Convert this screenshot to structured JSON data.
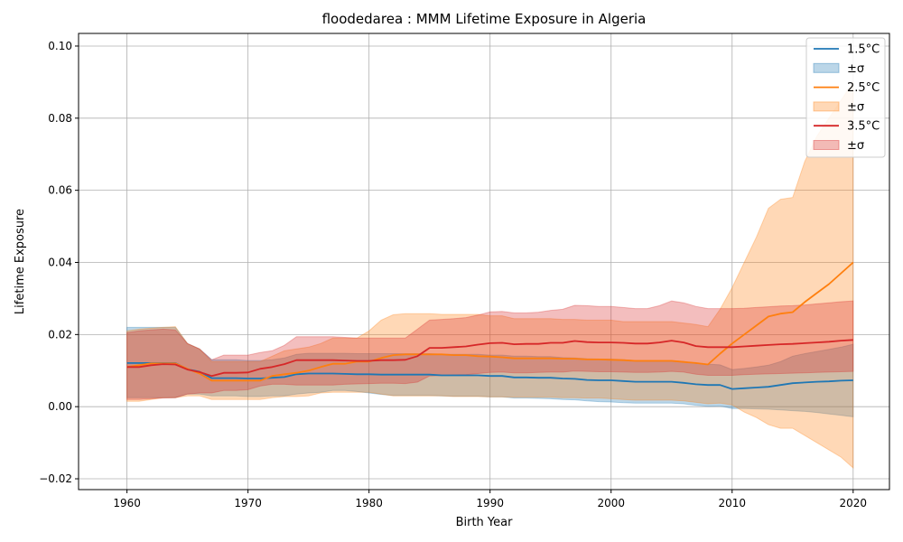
{
  "chart_data": {
    "type": "line",
    "title": "floodedarea : MMM Lifetime Exposure in Algeria",
    "xlabel": "Birth Year",
    "ylabel": "Lifetime Exposure",
    "xlim": [
      1956,
      2023
    ],
    "ylim": [
      -0.023,
      0.1035
    ],
    "xticks": [
      1960,
      1970,
      1980,
      1990,
      2000,
      2010,
      2020
    ],
    "yticks": [
      -0.02,
      0.0,
      0.02,
      0.04,
      0.06,
      0.08,
      0.1
    ],
    "ytick_labels": [
      "−0.02",
      "0.00",
      "0.02",
      "0.04",
      "0.06",
      "0.08",
      "0.10"
    ],
    "grid": true,
    "legend_position": "top-right",
    "legend": [
      "1.5°C",
      "±σ",
      "2.5°C",
      "±σ",
      "3.5°C",
      "±σ"
    ],
    "x": [
      1960,
      1961,
      1962,
      1963,
      1964,
      1965,
      1966,
      1967,
      1968,
      1969,
      1970,
      1971,
      1972,
      1973,
      1974,
      1975,
      1976,
      1977,
      1978,
      1979,
      1980,
      1981,
      1982,
      1983,
      1984,
      1985,
      1986,
      1987,
      1988,
      1989,
      1990,
      1991,
      1992,
      1993,
      1994,
      1995,
      1996,
      1997,
      1998,
      1999,
      2000,
      2001,
      2002,
      2003,
      2004,
      2005,
      2006,
      2007,
      2008,
      2009,
      2010,
      2011,
      2012,
      2013,
      2014,
      2015,
      2016,
      2017,
      2018,
      2019,
      2020
    ],
    "series": [
      {
        "name": "1.5°C",
        "band_name": "±σ",
        "color": "#1f77b4",
        "mean": [
          0.0121,
          0.0121,
          0.0121,
          0.0121,
          0.0121,
          0.0104,
          0.0097,
          0.0079,
          0.0079,
          0.0079,
          0.0078,
          0.0078,
          0.008,
          0.0082,
          0.009,
          0.0092,
          0.0092,
          0.0092,
          0.0091,
          0.009,
          0.009,
          0.0089,
          0.0089,
          0.0089,
          0.0089,
          0.0089,
          0.0087,
          0.0087,
          0.0087,
          0.0087,
          0.0085,
          0.0085,
          0.0081,
          0.0081,
          0.008,
          0.008,
          0.0078,
          0.0077,
          0.0074,
          0.0073,
          0.0073,
          0.0071,
          0.0069,
          0.0069,
          0.0069,
          0.0069,
          0.0066,
          0.0062,
          0.006,
          0.006,
          0.0049,
          0.0051,
          0.0053,
          0.0055,
          0.006,
          0.0065,
          0.0067,
          0.0069,
          0.007,
          0.0072,
          0.0073
        ],
        "upper": [
          0.022,
          0.022,
          0.022,
          0.022,
          0.022,
          0.0175,
          0.016,
          0.013,
          0.013,
          0.013,
          0.0128,
          0.0128,
          0.013,
          0.0135,
          0.0145,
          0.0148,
          0.0148,
          0.0148,
          0.0148,
          0.0147,
          0.0147,
          0.0147,
          0.0147,
          0.0147,
          0.0147,
          0.0147,
          0.0145,
          0.0145,
          0.0145,
          0.0145,
          0.0143,
          0.0143,
          0.014,
          0.014,
          0.0139,
          0.0139,
          0.0136,
          0.0135,
          0.0133,
          0.0132,
          0.0132,
          0.013,
          0.0128,
          0.0128,
          0.0128,
          0.0128,
          0.0125,
          0.012,
          0.0118,
          0.0116,
          0.0103,
          0.0106,
          0.011,
          0.0115,
          0.0125,
          0.014,
          0.0147,
          0.0153,
          0.0159,
          0.0165,
          0.0173
        ],
        "lower": [
          0.0025,
          0.0025,
          0.0025,
          0.0025,
          0.0025,
          0.0035,
          0.0035,
          0.003,
          0.003,
          0.003,
          0.0028,
          0.0028,
          0.003,
          0.003,
          0.0035,
          0.0038,
          0.004,
          0.0045,
          0.0045,
          0.0042,
          0.0038,
          0.0034,
          0.0031,
          0.0031,
          0.0031,
          0.0031,
          0.003,
          0.0029,
          0.0029,
          0.0029,
          0.0027,
          0.0027,
          0.0024,
          0.0024,
          0.0023,
          0.0022,
          0.002,
          0.0019,
          0.0016,
          0.0014,
          0.0013,
          0.0011,
          0.001,
          0.001,
          0.001,
          0.001,
          0.0008,
          0.0004,
          0.0001,
          0.0002,
          -0.0005,
          -0.0005,
          -0.0006,
          -0.0007,
          -0.0009,
          -0.0011,
          -0.0013,
          -0.0016,
          -0.002,
          -0.0024,
          -0.0028
        ]
      },
      {
        "name": "2.5°C",
        "band_name": "±σ",
        "color": "#ff7f0e",
        "mean": [
          0.011,
          0.0115,
          0.012,
          0.012,
          0.012,
          0.0105,
          0.0092,
          0.0072,
          0.0072,
          0.0072,
          0.0072,
          0.0072,
          0.0085,
          0.009,
          0.0094,
          0.01,
          0.011,
          0.0119,
          0.0119,
          0.0125,
          0.0125,
          0.0135,
          0.0143,
          0.0145,
          0.0145,
          0.0145,
          0.0145,
          0.0143,
          0.0143,
          0.014,
          0.0139,
          0.0137,
          0.0134,
          0.0134,
          0.0134,
          0.0134,
          0.0133,
          0.0133,
          0.0131,
          0.0131,
          0.013,
          0.0129,
          0.0127,
          0.0127,
          0.0127,
          0.0127,
          0.0124,
          0.0121,
          0.0117,
          0.0147,
          0.0175,
          0.02,
          0.0225,
          0.025,
          0.0258,
          0.0262,
          0.029,
          0.0315,
          0.034,
          0.037,
          0.04
        ],
        "upper": [
          0.021,
          0.0215,
          0.0218,
          0.022,
          0.0222,
          0.0175,
          0.016,
          0.0125,
          0.0125,
          0.0125,
          0.0125,
          0.0125,
          0.014,
          0.0155,
          0.016,
          0.0165,
          0.0175,
          0.019,
          0.019,
          0.019,
          0.021,
          0.024,
          0.0255,
          0.0258,
          0.0258,
          0.0258,
          0.0256,
          0.0256,
          0.0256,
          0.0256,
          0.0252,
          0.0252,
          0.0244,
          0.0244,
          0.0244,
          0.0244,
          0.0242,
          0.0242,
          0.024,
          0.024,
          0.024,
          0.0236,
          0.0236,
          0.0236,
          0.0236,
          0.0236,
          0.0232,
          0.0228,
          0.0222,
          0.027,
          0.033,
          0.04,
          0.047,
          0.055,
          0.0575,
          0.058,
          0.068,
          0.075,
          0.08,
          0.085,
          0.09
        ],
        "lower": [
          0.0015,
          0.0015,
          0.002,
          0.0025,
          0.0025,
          0.003,
          0.003,
          0.002,
          0.002,
          0.002,
          0.002,
          0.002,
          0.0025,
          0.0028,
          0.0028,
          0.003,
          0.0038,
          0.004,
          0.004,
          0.004,
          0.004,
          0.0035,
          0.003,
          0.003,
          0.003,
          0.003,
          0.003,
          0.0028,
          0.0028,
          0.0028,
          0.0027,
          0.0027,
          0.0026,
          0.0026,
          0.0026,
          0.0026,
          0.0025,
          0.0025,
          0.0024,
          0.0024,
          0.0022,
          0.002,
          0.0018,
          0.0018,
          0.0018,
          0.0018,
          0.0016,
          0.0012,
          0.0008,
          0.001,
          0.0005,
          -0.0015,
          -0.003,
          -0.005,
          -0.006,
          -0.006,
          -0.008,
          -0.01,
          -0.012,
          -0.014,
          -0.017
        ]
      },
      {
        "name": "3.5°C",
        "band_name": "±σ",
        "color": "#d62728",
        "mean": [
          0.011,
          0.011,
          0.0115,
          0.0118,
          0.0117,
          0.0103,
          0.0096,
          0.0085,
          0.0094,
          0.0094,
          0.0095,
          0.0105,
          0.011,
          0.0118,
          0.0129,
          0.0129,
          0.0129,
          0.0129,
          0.0128,
          0.0127,
          0.0127,
          0.0129,
          0.0129,
          0.013,
          0.014,
          0.0163,
          0.0163,
          0.0165,
          0.0167,
          0.0172,
          0.0176,
          0.0177,
          0.0173,
          0.0174,
          0.0174,
          0.0177,
          0.0177,
          0.0182,
          0.0179,
          0.0178,
          0.0178,
          0.0177,
          0.0175,
          0.0175,
          0.0178,
          0.0183,
          0.0178,
          0.0168,
          0.0165,
          0.0165,
          0.0165,
          0.0167,
          0.0169,
          0.0171,
          0.0173,
          0.0174,
          0.0176,
          0.0178,
          0.018,
          0.0183,
          0.0185
        ],
        "upper": [
          0.0205,
          0.021,
          0.0213,
          0.0215,
          0.0213,
          0.0175,
          0.016,
          0.013,
          0.0143,
          0.0143,
          0.0143,
          0.015,
          0.0155,
          0.017,
          0.0194,
          0.0194,
          0.0194,
          0.0194,
          0.0192,
          0.019,
          0.019,
          0.019,
          0.019,
          0.019,
          0.0215,
          0.024,
          0.0242,
          0.0244,
          0.0247,
          0.0254,
          0.0263,
          0.0264,
          0.026,
          0.026,
          0.0262,
          0.0267,
          0.027,
          0.0281,
          0.028,
          0.0278,
          0.0278,
          0.0275,
          0.0272,
          0.0272,
          0.028,
          0.0293,
          0.0288,
          0.0278,
          0.0272,
          0.0272,
          0.0272,
          0.0273,
          0.0275,
          0.0277,
          0.0279,
          0.028,
          0.0282,
          0.0285,
          0.0288,
          0.0291,
          0.0293
        ],
        "lower": [
          0.002,
          0.002,
          0.0022,
          0.0024,
          0.0025,
          0.0035,
          0.0038,
          0.0038,
          0.0045,
          0.0045,
          0.0047,
          0.0057,
          0.0062,
          0.0062,
          0.006,
          0.006,
          0.006,
          0.006,
          0.0062,
          0.0063,
          0.0064,
          0.0065,
          0.0065,
          0.0064,
          0.0068,
          0.0085,
          0.0086,
          0.0088,
          0.0089,
          0.0092,
          0.0095,
          0.0096,
          0.0094,
          0.0094,
          0.0095,
          0.0096,
          0.0096,
          0.0099,
          0.0098,
          0.0097,
          0.0097,
          0.0096,
          0.0095,
          0.0095,
          0.0096,
          0.0098,
          0.0096,
          0.009,
          0.0087,
          0.0087,
          0.0087,
          0.0089,
          0.009,
          0.0091,
          0.0092,
          0.0093,
          0.0094,
          0.0095,
          0.0096,
          0.0097,
          0.0098
        ]
      }
    ]
  }
}
